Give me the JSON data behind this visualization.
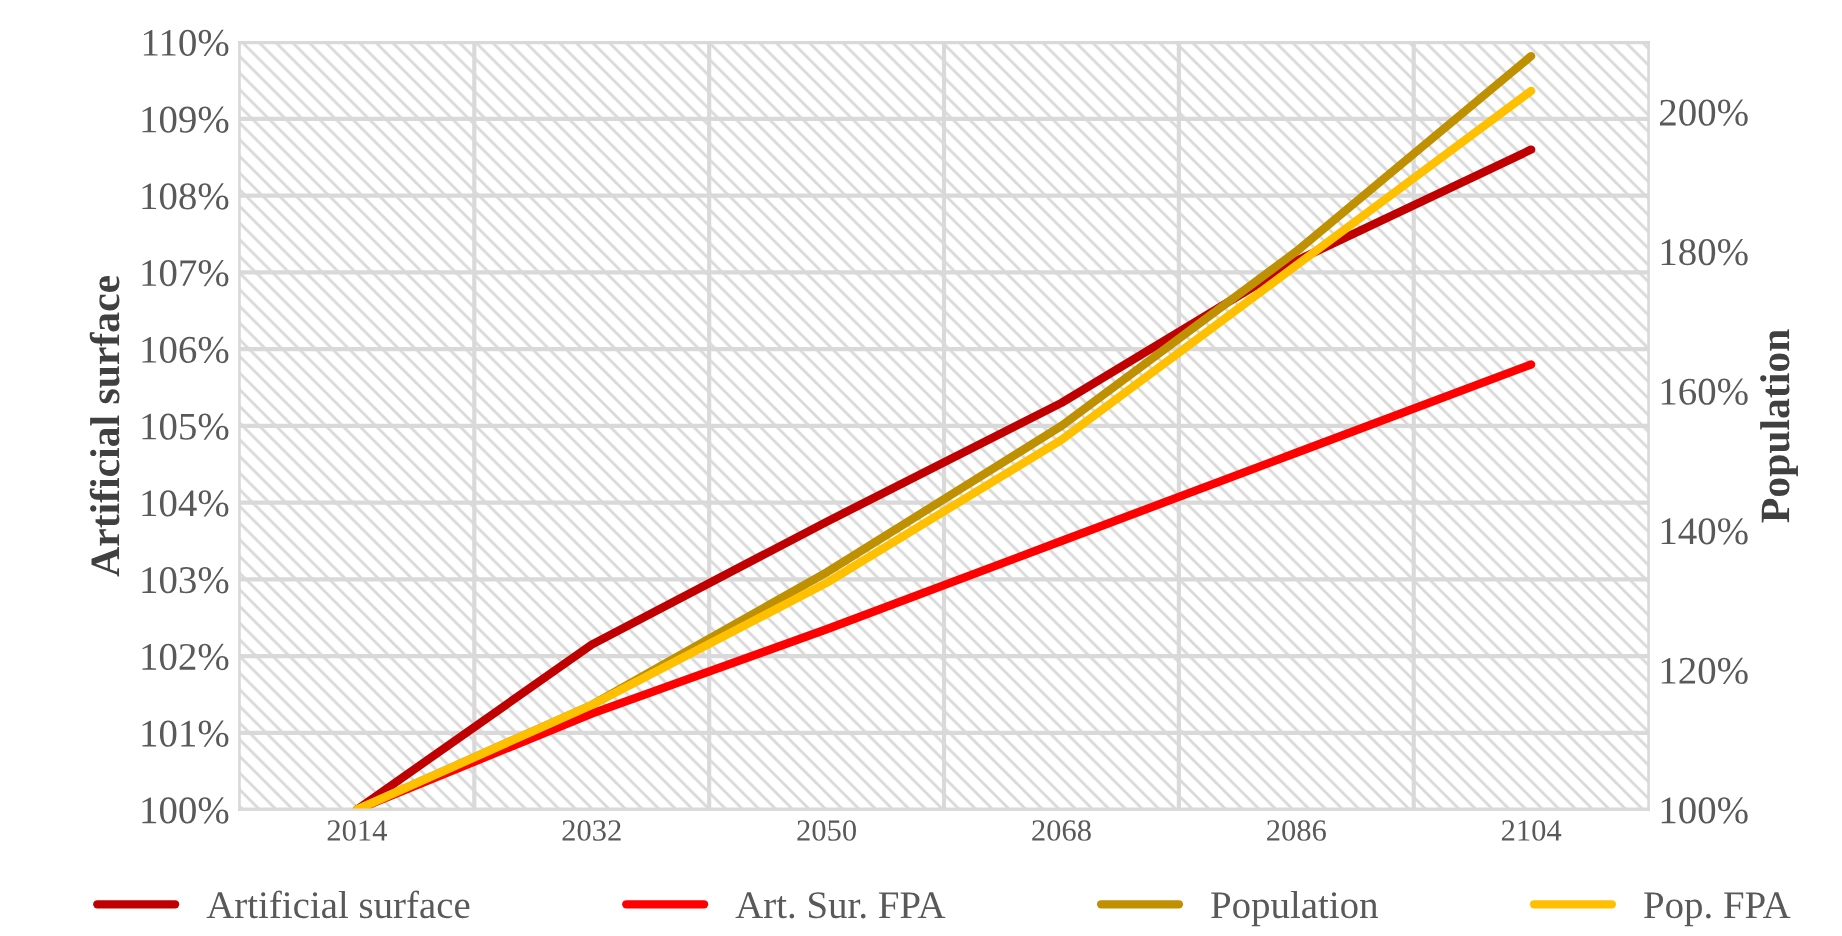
{
  "chart_data": {
    "type": "line",
    "ylabel": "Artificial surface",
    "y2label": "Population",
    "categories": [
      "2014",
      "2032",
      "2050",
      "2068",
      "2086",
      "2104"
    ],
    "series": [
      {
        "name": "Artificial surface",
        "color": "#c00000",
        "values": [
          100,
          102.15,
          103.75,
          105.3,
          107.15,
          108.6
        ]
      },
      {
        "name": "Art. Sur. FPA",
        "color": "#ff0000",
        "values": [
          100,
          101.25,
          102.35,
          103.5,
          104.65,
          105.8
        ]
      },
      {
        "name": "Population",
        "color": "#bf9000",
        "axis": "y2",
        "values": [
          100,
          115,
          134,
          155,
          180,
          208
        ]
      },
      {
        "name": "Pop. FPA",
        "color": "#ffc000",
        "axis": "y2",
        "values": [
          100,
          115,
          132.5,
          153,
          178,
          203
        ]
      }
    ],
    "ylim": [
      100,
      110
    ],
    "yticks": [
      {
        "value": 100,
        "label": "100%"
      },
      {
        "value": 101,
        "label": "101%"
      },
      {
        "value": 102,
        "label": "102%"
      },
      {
        "value": 103,
        "label": "103%"
      },
      {
        "value": 104,
        "label": "104%"
      },
      {
        "value": 105,
        "label": "105%"
      },
      {
        "value": 106,
        "label": "106%"
      },
      {
        "value": 107,
        "label": "107%"
      },
      {
        "value": 108,
        "label": "108%"
      },
      {
        "value": 109,
        "label": "109%"
      },
      {
        "value": 110,
        "label": "110%"
      }
    ],
    "y2lim": [
      100,
      210
    ],
    "y2ticks": [
      {
        "value": 100,
        "label": "100%"
      },
      {
        "value": 120,
        "label": "120%"
      },
      {
        "value": 140,
        "label": "140%"
      },
      {
        "value": 160,
        "label": "160%"
      },
      {
        "value": 180,
        "label": "180%"
      },
      {
        "value": 200,
        "label": "200%"
      }
    ],
    "grid": true,
    "legend": "bottom",
    "line_style": "solid"
  }
}
